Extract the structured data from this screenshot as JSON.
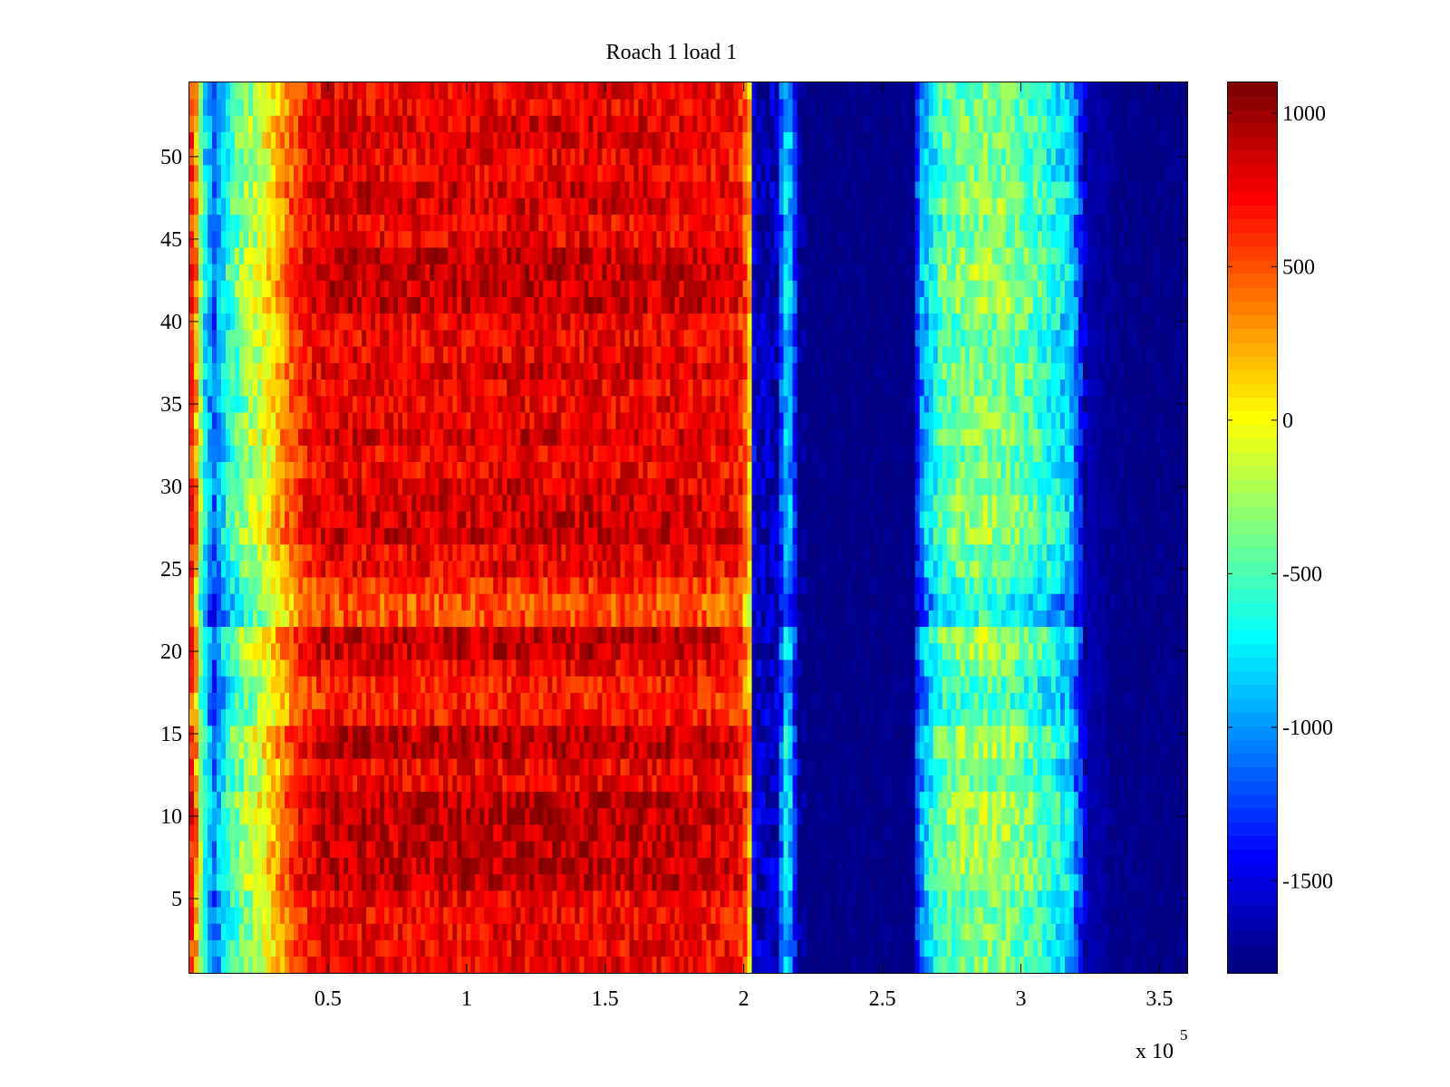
{
  "chart_data": {
    "type": "heatmap",
    "title": "Roach 1 load 1",
    "xlabel": "",
    "ylabel": "",
    "x_multiplier_label": {
      "base": "x 10",
      "exponent": "5"
    },
    "xlim": [
      0,
      3.6
    ],
    "ylim": [
      0.5,
      54.5
    ],
    "xticks": [
      0.5,
      1,
      1.5,
      2,
      2.5,
      3,
      3.5
    ],
    "xtick_labels": [
      "0.5",
      "1",
      "1.5",
      "2",
      "2.5",
      "3",
      "3.5"
    ],
    "yticks": [
      5,
      10,
      15,
      20,
      25,
      30,
      35,
      40,
      45,
      50
    ],
    "ytick_labels": [
      "5",
      "10",
      "15",
      "20",
      "25",
      "30",
      "35",
      "40",
      "45",
      "50"
    ],
    "rows": 54,
    "colormap": "jet",
    "colorbar": {
      "clim": [
        -1800,
        1100
      ],
      "ticks": [
        1000,
        500,
        0,
        -500,
        -1000,
        -1500
      ],
      "tick_labels": [
        "1000",
        "500",
        "0",
        "-500",
        "-1000",
        "-1500"
      ]
    },
    "column_profile": {
      "x": [
        0,
        0.02,
        0.05,
        0.09,
        0.14,
        0.2,
        0.27,
        0.33,
        0.4,
        0.5,
        0.8,
        1.2,
        1.5,
        1.8,
        1.98,
        2.02,
        2.03,
        2.06,
        2.12,
        2.15,
        2.17,
        2.2,
        2.22,
        2.5,
        2.61,
        2.63,
        2.66,
        2.72,
        2.85,
        2.95,
        3.05,
        3.12,
        3.18,
        3.21,
        3.23,
        3.35,
        3.6
      ],
      "values": [
        650,
        420,
        -700,
        -1200,
        -650,
        -350,
        -100,
        250,
        600,
        780,
        760,
        790,
        780,
        760,
        700,
        350,
        -1500,
        -1650,
        -1620,
        -900,
        -1000,
        -1780,
        -1790,
        -1790,
        -1780,
        -1200,
        -900,
        -500,
        -350,
        -400,
        -550,
        -700,
        -900,
        -1300,
        -1650,
        -1780,
        -1790
      ]
    },
    "row_modulation": {
      "rows": [
        6,
        7,
        8,
        9,
        10,
        11,
        14,
        15,
        16,
        17,
        18,
        20,
        21,
        22,
        23,
        24,
        27,
        28,
        29,
        30,
        33,
        37,
        41,
        42,
        43,
        44,
        47,
        48,
        51,
        52
      ],
      "delta": [
        150,
        150,
        130,
        130,
        170,
        170,
        150,
        150,
        -80,
        -120,
        -100,
        120,
        140,
        -250,
        -280,
        -150,
        100,
        100,
        80,
        60,
        80,
        60,
        120,
        120,
        130,
        120,
        80,
        80,
        70,
        60
      ]
    }
  }
}
